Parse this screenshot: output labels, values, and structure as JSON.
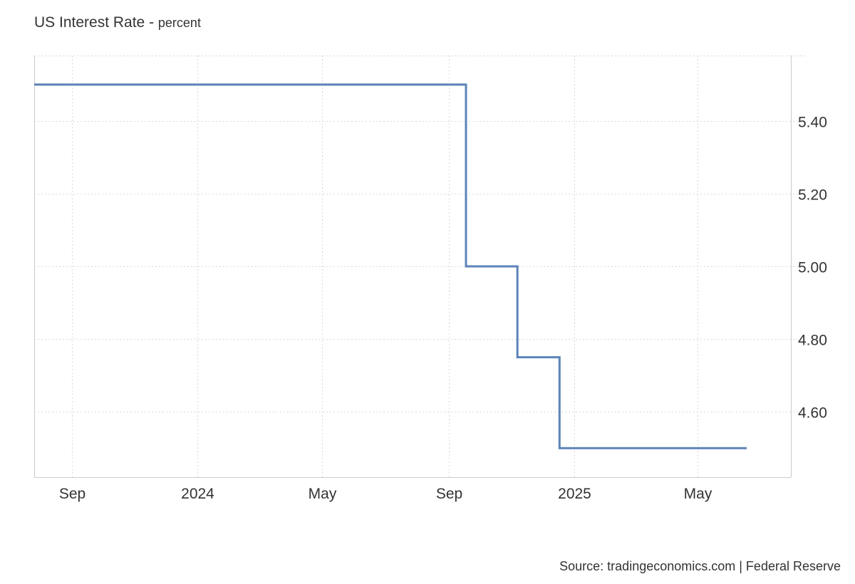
{
  "chart_data": {
    "type": "line",
    "title": "US Interest Rate",
    "unit": "percent",
    "source": "Source: tradingeconomics.com | Federal Reserve",
    "line_color": "#5b84b8",
    "grid": true,
    "y_axis_position": "right",
    "ylim": [
      4.42,
      5.58
    ],
    "y_ticks": [
      {
        "value": 4.6,
        "label": "4.60"
      },
      {
        "value": 4.8,
        "label": "4.80"
      },
      {
        "value": 5.0,
        "label": "5.00"
      },
      {
        "value": 5.2,
        "label": "5.20"
      },
      {
        "value": 5.4,
        "label": "5.40"
      }
    ],
    "xlim": [
      "2023-07-26",
      "2025-07-31"
    ],
    "x_ticks": [
      {
        "date": "2023-09-01",
        "label": "Sep"
      },
      {
        "date": "2024-01-01",
        "label": "2024"
      },
      {
        "date": "2024-05-01",
        "label": "May"
      },
      {
        "date": "2024-09-01",
        "label": "Sep"
      },
      {
        "date": "2025-01-01",
        "label": "2025"
      },
      {
        "date": "2025-05-01",
        "label": "May"
      }
    ],
    "series": [
      {
        "name": "",
        "step": true,
        "points": [
          {
            "date": "2023-07-26",
            "value": 5.5
          },
          {
            "date": "2024-09-18",
            "value": 5.0
          },
          {
            "date": "2024-11-07",
            "value": 4.75
          },
          {
            "date": "2024-12-18",
            "value": 4.5
          },
          {
            "date": "2025-06-18",
            "value": 4.5
          }
        ]
      }
    ]
  }
}
